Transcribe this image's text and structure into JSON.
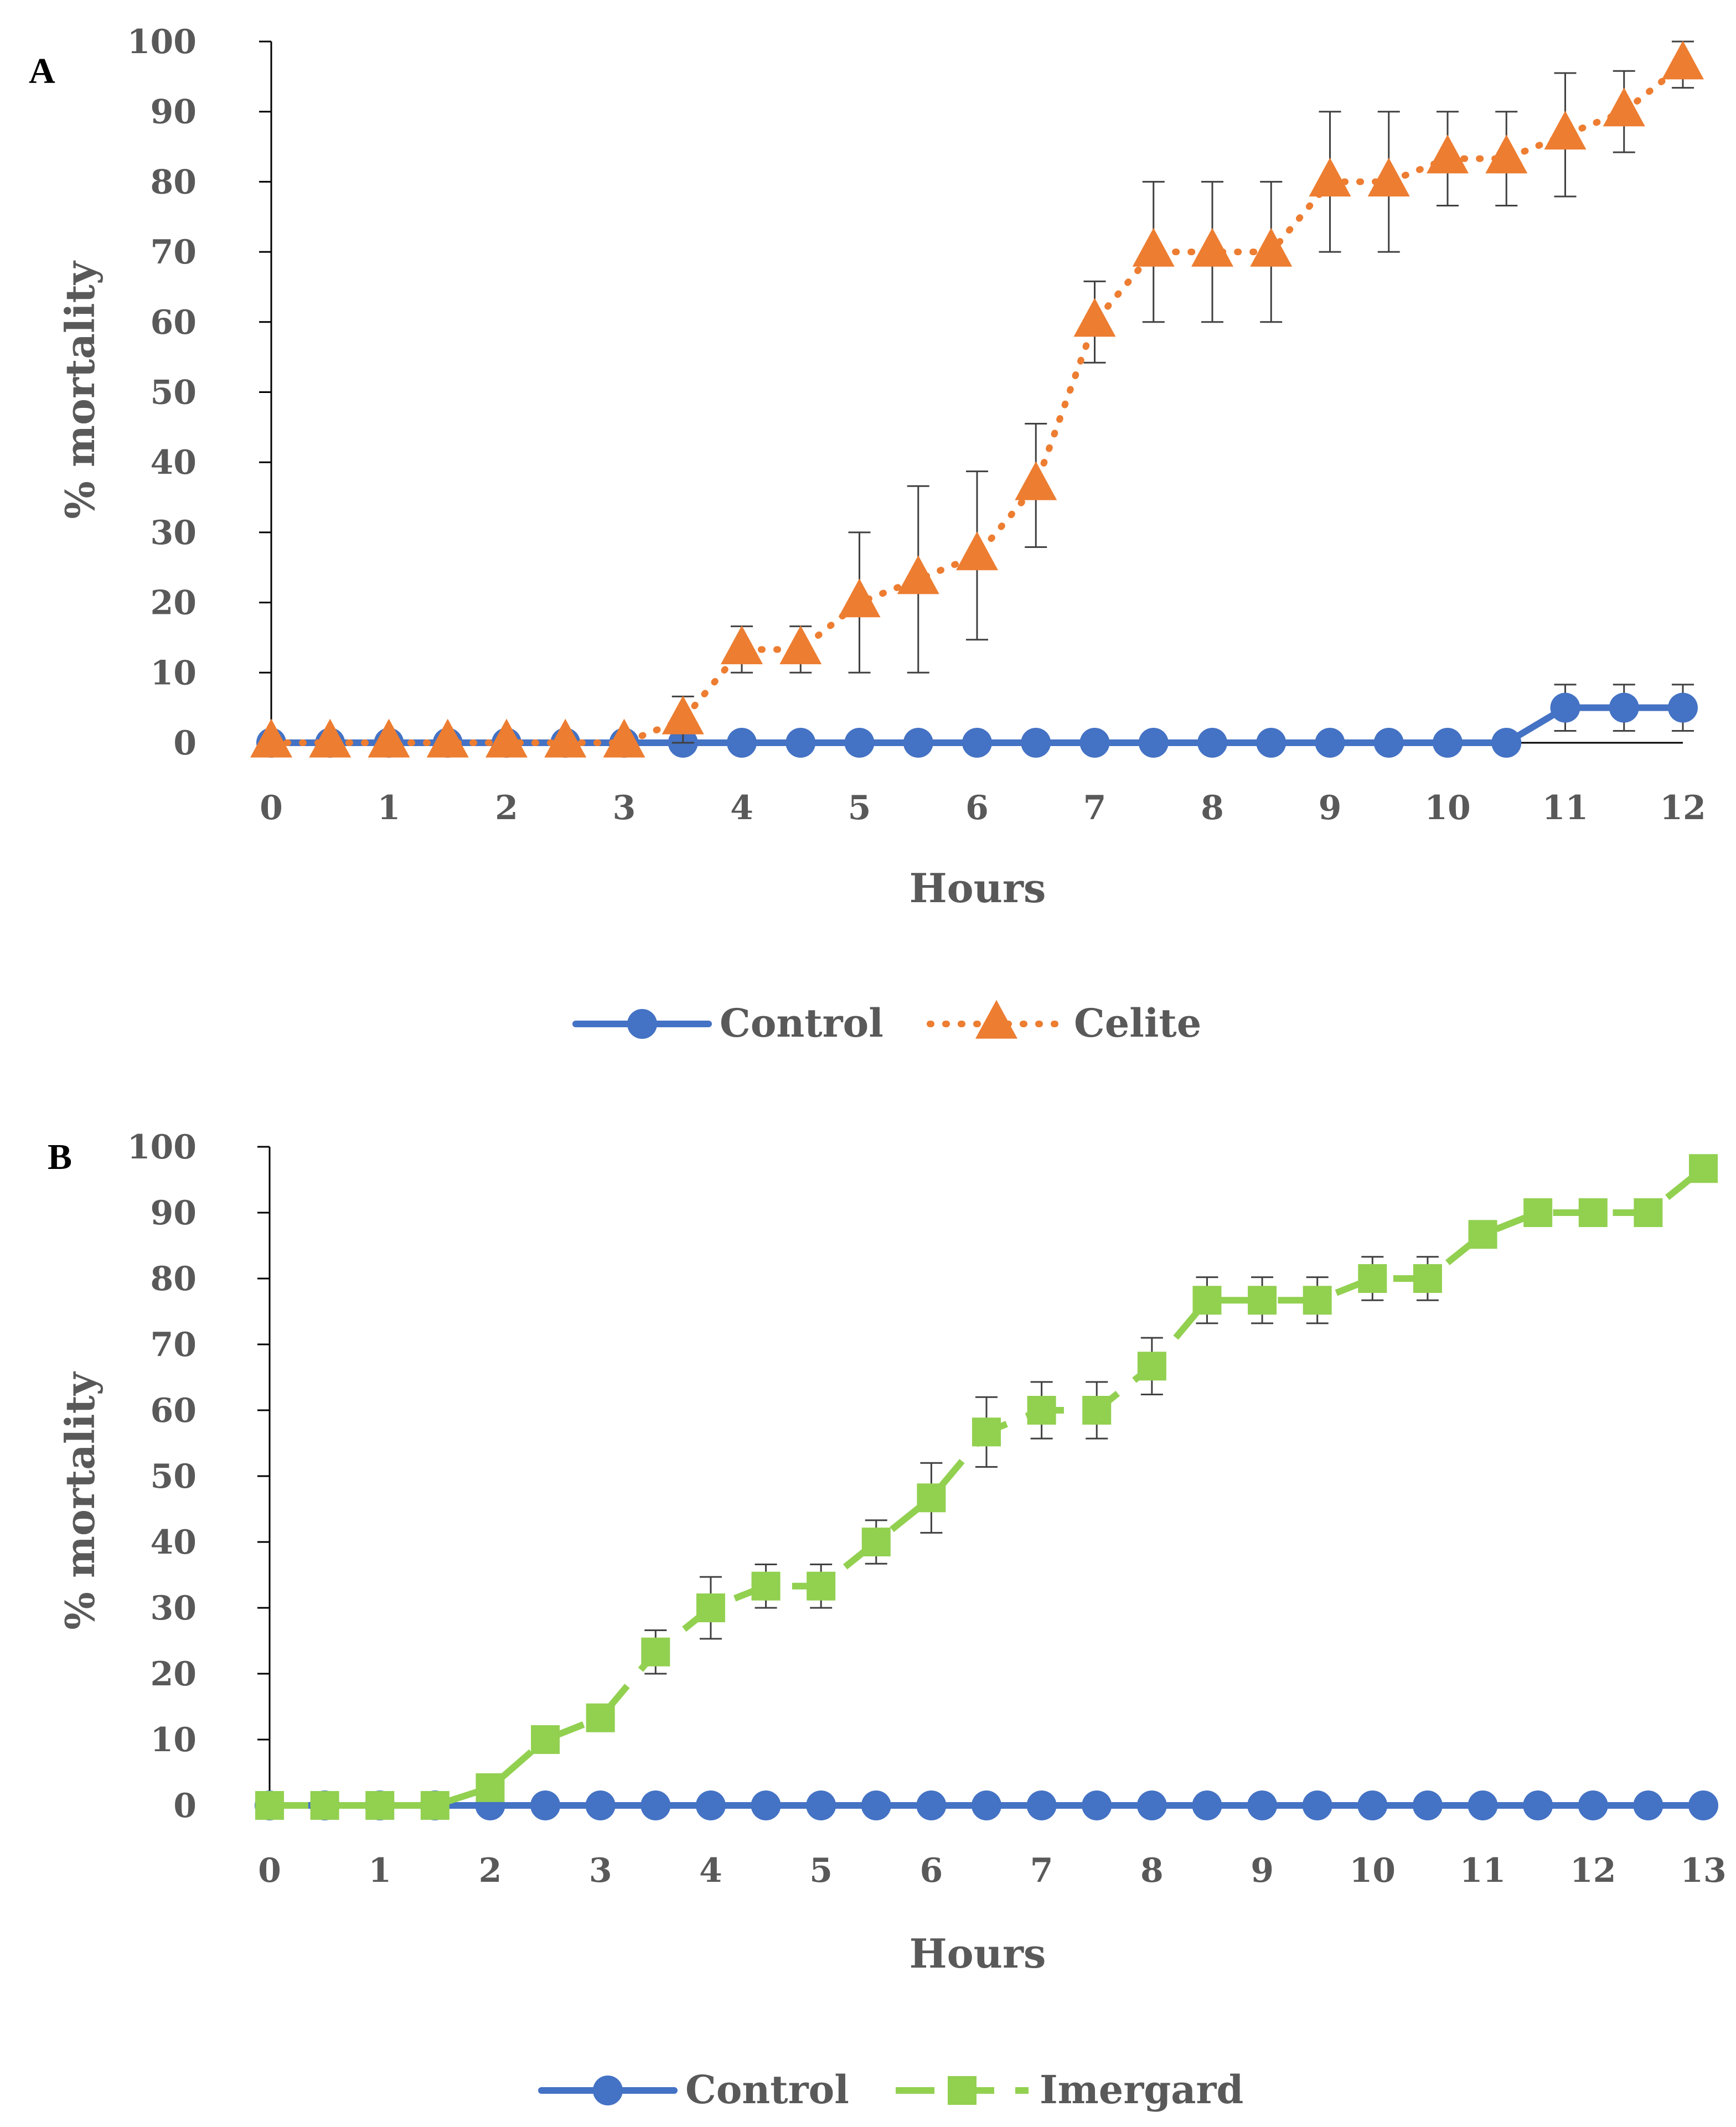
{
  "chart_data": [
    {
      "type": "line",
      "panel": "A",
      "title": "",
      "xlabel": "Hours",
      "ylabel": "% mortality",
      "xlim": [
        0,
        12
      ],
      "ylim": [
        0,
        100
      ],
      "xticks": [
        0,
        1,
        2,
        3,
        4,
        5,
        6,
        7,
        8,
        9,
        10,
        11,
        12
      ],
      "yticks": [
        0,
        10,
        20,
        30,
        40,
        50,
        60,
        70,
        80,
        90,
        100
      ],
      "legend_position": "bottom",
      "grid": false,
      "series": [
        {
          "name": "Control",
          "color": "#4472C4",
          "line_style": "solid",
          "marker": "circle",
          "x": [
            0,
            0.5,
            1,
            1.5,
            2,
            2.5,
            3,
            3.5,
            4,
            4.5,
            5,
            5.5,
            6,
            6.5,
            7,
            7.5,
            8,
            8.5,
            9,
            9.5,
            10,
            10.5,
            11,
            11.5,
            12
          ],
          "values": [
            0,
            0,
            0,
            0,
            0,
            0,
            0,
            0,
            0,
            0,
            0,
            0,
            0,
            0,
            0,
            0,
            0,
            0,
            0,
            0,
            0,
            0,
            5,
            5,
            5
          ],
          "errors": [
            0,
            0,
            0,
            0,
            0,
            0,
            0,
            0,
            0,
            0,
            0,
            0,
            0,
            0,
            0,
            0,
            0,
            0,
            0,
            0,
            0,
            0,
            3.3,
            3.3,
            3.3
          ]
        },
        {
          "name": "Celite",
          "color": "#ED7D31",
          "line_style": "dotted",
          "marker": "triangle",
          "x": [
            0,
            0.5,
            1,
            1.5,
            2,
            2.5,
            3,
            3.5,
            4,
            4.5,
            5,
            5.5,
            6,
            6.5,
            7,
            7.5,
            8,
            8.5,
            9,
            9.5,
            10,
            10.5,
            11,
            11.5,
            12
          ],
          "values": [
            0,
            0,
            0,
            0,
            0,
            0,
            0,
            3.3,
            13.3,
            13.3,
            20,
            23.3,
            26.7,
            36.7,
            60,
            70,
            70,
            70,
            80,
            80,
            83.3,
            83.3,
            86.7,
            90,
            96.7
          ],
          "errors": [
            0,
            0,
            0,
            0,
            0,
            0,
            0,
            3.3,
            3.3,
            3.3,
            10,
            13.3,
            12,
            8.8,
            5.8,
            10,
            10,
            10,
            10,
            10,
            6.7,
            6.7,
            8.8,
            5.8,
            3.3
          ]
        }
      ]
    },
    {
      "type": "line",
      "panel": "B",
      "title": "",
      "xlabel": "Hours",
      "ylabel": "% mortality",
      "xlim": [
        0,
        13
      ],
      "ylim": [
        0,
        100
      ],
      "xticks": [
        0,
        1,
        2,
        3,
        4,
        5,
        6,
        7,
        8,
        9,
        10,
        11,
        12,
        13
      ],
      "yticks": [
        0,
        10,
        20,
        30,
        40,
        50,
        60,
        70,
        80,
        90,
        100
      ],
      "legend_position": "bottom",
      "grid": false,
      "series": [
        {
          "name": "Control",
          "color": "#4472C4",
          "line_style": "solid",
          "marker": "circle",
          "x": [
            0,
            0.5,
            1,
            1.5,
            2,
            2.5,
            3,
            3.5,
            4,
            4.5,
            5,
            5.5,
            6,
            6.5,
            7,
            7.5,
            8,
            8.5,
            9,
            9.5,
            10,
            10.5,
            11,
            11.5,
            12,
            12.5,
            13
          ],
          "values": [
            0,
            0,
            0,
            0,
            0,
            0,
            0,
            0,
            0,
            0,
            0,
            0,
            0,
            0,
            0,
            0,
            0,
            0,
            0,
            0,
            0,
            0,
            0,
            0,
            0,
            0,
            0
          ],
          "errors": [
            0,
            0,
            0,
            0,
            0,
            0,
            0,
            0,
            0,
            0,
            0,
            0,
            0,
            0,
            0,
            0,
            0,
            0,
            0,
            0,
            0,
            0,
            0,
            0,
            0,
            0,
            0
          ]
        },
        {
          "name": "Imergard",
          "color": "#92D050",
          "line_style": "dashed",
          "marker": "square",
          "x": [
            0,
            0.5,
            1,
            1.5,
            2,
            2.5,
            3,
            3.5,
            4,
            4.5,
            5,
            5.5,
            6,
            6.5,
            7,
            7.5,
            8,
            8.5,
            9,
            9.5,
            10,
            10.5,
            11,
            11.5,
            12,
            12.5,
            13
          ],
          "values": [
            0,
            0,
            0,
            0,
            2.7,
            10,
            13.3,
            23.3,
            30,
            33.3,
            33.3,
            40,
            46.7,
            56.7,
            60,
            60,
            66.7,
            76.7,
            76.7,
            76.7,
            80,
            80,
            86.7,
            90,
            90,
            90,
            96.7
          ],
          "errors": [
            0,
            0,
            0,
            0,
            0,
            0,
            0,
            3.3,
            4.7,
            3.3,
            3.3,
            3.3,
            5.3,
            5.3,
            4.3,
            4.3,
            4.3,
            3.5,
            3.5,
            3.5,
            3.3,
            3.3,
            0,
            0,
            0,
            0,
            0
          ]
        }
      ]
    }
  ]
}
